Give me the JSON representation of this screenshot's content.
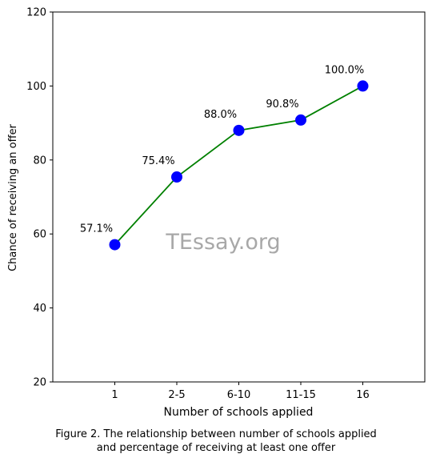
{
  "chart_data": {
    "type": "line",
    "categories": [
      "1",
      "2-5",
      "6-10",
      "11-15",
      "16"
    ],
    "values": [
      57.1,
      75.4,
      88.0,
      90.8,
      100.0
    ],
    "data_labels": [
      "57.1%",
      "75.4%",
      "88.0%",
      "90.8%",
      "100.0%"
    ],
    "xlabel": "Number of schools applied",
    "ylabel": "Chance of receiving an offer",
    "ylim": [
      20,
      120
    ],
    "yticks": [
      20,
      40,
      60,
      80,
      100,
      120
    ],
    "grid": false,
    "line_color": "#008000",
    "marker_color": "#0000ff",
    "watermark": "TEssay.org"
  },
  "caption": {
    "line1": "Figure 2. The relationship between number of schools applied",
    "line2": "and percentage of receiving at least one offer"
  }
}
